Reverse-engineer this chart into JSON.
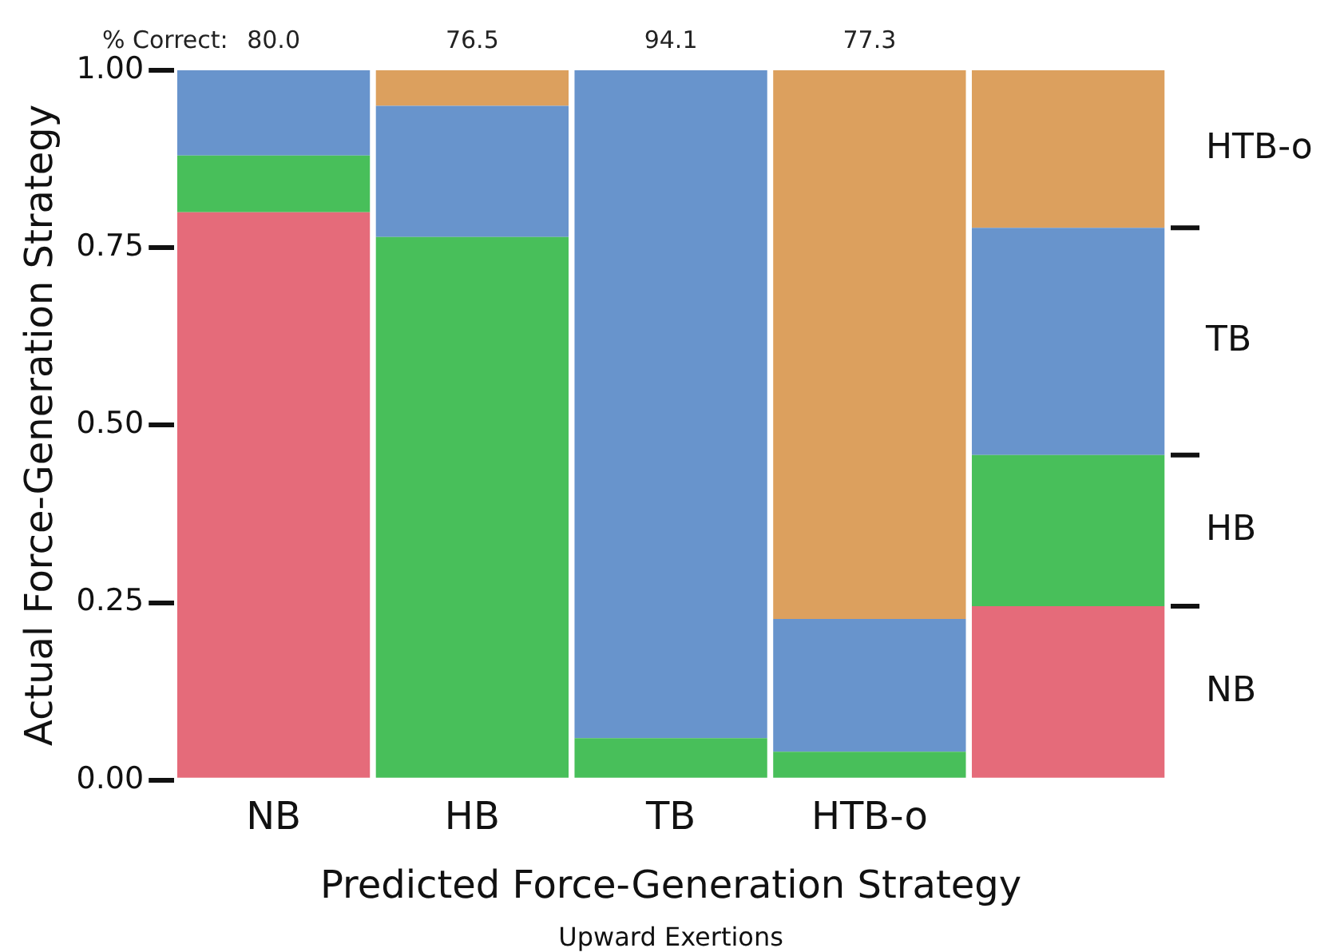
{
  "chart_data": {
    "type": "bar",
    "stacked": true,
    "xlabel": "Predicted Force-Generation Strategy",
    "ylabel": "Actual Force-Generation Strategy",
    "subtitle": "Upward Exertions",
    "categories": [
      "NB",
      "HB",
      "TB",
      "HTB-o",
      null
    ],
    "series": [
      {
        "name": "NB",
        "color": "#e56b7a",
        "values": [
          0.8,
          0,
          0,
          0,
          0.245
        ]
      },
      {
        "name": "HB",
        "color": "#48bf5a",
        "values": [
          0.08,
          0.765,
          0.059,
          0.04,
          0.213
        ]
      },
      {
        "name": "TB",
        "color": "#6894cc",
        "values": [
          0.12,
          0.185,
          0.941,
          0.187,
          0.32
        ]
      },
      {
        "name": "HTB-o",
        "color": "#dca05e",
        "values": [
          0,
          0.05,
          0,
          0.773,
          0.222
        ]
      }
    ],
    "ylim": [
      0,
      1
    ],
    "yticks": [
      {
        "value": 0,
        "label": "0.00"
      },
      {
        "value": 0.25,
        "label": "0.25"
      },
      {
        "value": 0.5,
        "label": "0.50"
      },
      {
        "value": 0.75,
        "label": "0.75"
      },
      {
        "value": 1,
        "label": "1.00"
      }
    ],
    "annotations": [
      "% Correct:",
      "80.0",
      "76.5",
      "94.1",
      "77.3"
    ],
    "grid": false,
    "legend": false
  }
}
